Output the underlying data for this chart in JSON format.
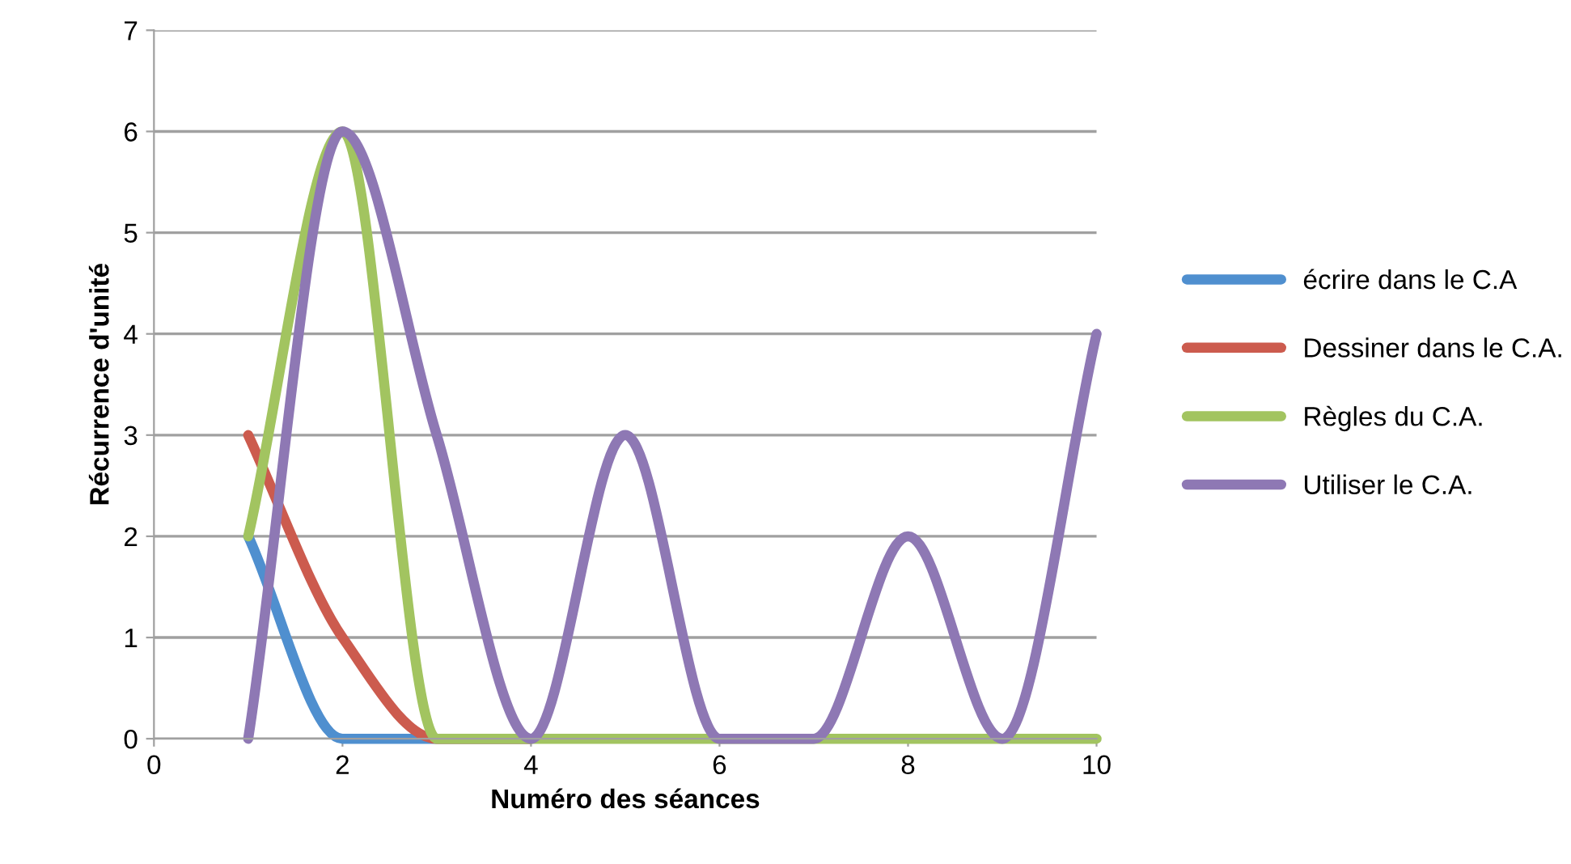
{
  "chart_data": {
    "type": "line",
    "xlabel": "Numéro des séances",
    "ylabel": "Récurrence d'unité",
    "x": [
      1,
      2,
      3,
      4,
      5,
      6,
      7,
      8,
      9,
      10
    ],
    "series": [
      {
        "name": "écrire dans le C.A",
        "color": "#4f8fcf",
        "values": [
          2,
          0,
          0,
          0,
          null,
          null,
          null,
          null,
          null,
          null
        ]
      },
      {
        "name": "Dessiner dans le C.A.",
        "color": "#cc5b4e",
        "values": [
          3,
          1,
          0,
          0,
          null,
          null,
          null,
          null,
          null,
          null
        ]
      },
      {
        "name": "Règles du C.A.",
        "color": "#a2c460",
        "values": [
          2,
          6,
          0,
          0,
          0,
          0,
          0,
          0,
          0,
          0
        ]
      },
      {
        "name": "Utiliser le C.A.",
        "color": "#8e78b4",
        "values": [
          0,
          6,
          3,
          0,
          3,
          0,
          0,
          2,
          0,
          4
        ]
      }
    ],
    "xlim": [
      0,
      10
    ],
    "xticks": [
      0,
      2,
      4,
      6,
      8,
      10
    ],
    "ylim": [
      0,
      7
    ],
    "yticks": [
      0,
      1,
      2,
      3,
      4,
      5,
      6,
      7
    ],
    "grid": "y",
    "legend": "right",
    "marker": "none",
    "line_style": "solid"
  }
}
